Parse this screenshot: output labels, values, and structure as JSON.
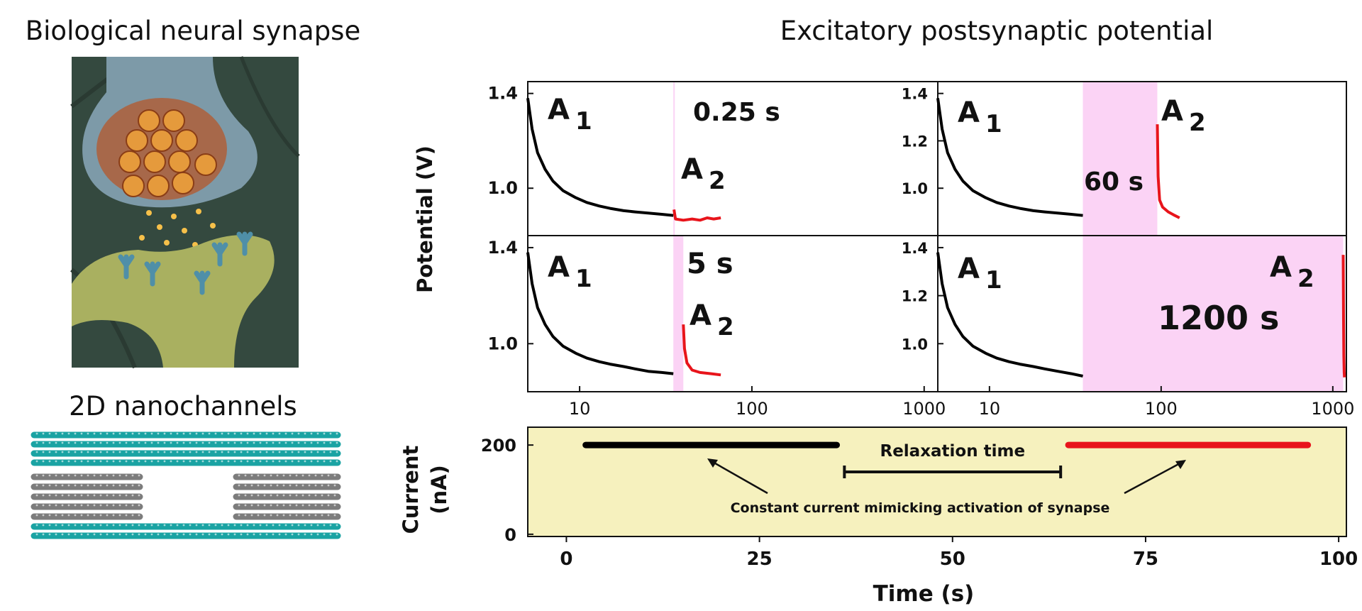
{
  "left_panel": {
    "title_top": "Biological neural synapse",
    "title_bottom": "2D nanochannels"
  },
  "figure_title": "Excitatory postsynaptic potential",
  "colors": {
    "first_pulse": "#000000",
    "second_pulse": "#e8141b",
    "interval_shade": "#fbd3f5",
    "current_bg": "#f6f1be",
    "channel_layer": "#1aa3a3",
    "channel_inner": "#808080"
  },
  "chart_data": [
    {
      "type": "line",
      "panel": "top-left",
      "xscale": "log",
      "xlim": [
        5,
        1200
      ],
      "x_ticks": [
        "10",
        "100",
        "1000"
      ],
      "ylim": [
        0.8,
        1.45
      ],
      "y_ticks": [
        "1.0",
        "1.4"
      ],
      "ylabel": "Potential (V)",
      "interval_label": "0.25 s",
      "shade_x": [
        35,
        35.4
      ],
      "series": [
        {
          "name": "A 1",
          "points": [
            [
              5,
              1.38
            ],
            [
              5.3,
              1.25
            ],
            [
              5.7,
              1.15
            ],
            [
              6.3,
              1.08
            ],
            [
              7,
              1.03
            ],
            [
              8,
              0.99
            ],
            [
              9.5,
              0.96
            ],
            [
              11,
              0.94
            ],
            [
              13,
              0.925
            ],
            [
              15,
              0.915
            ],
            [
              18,
              0.905
            ],
            [
              21,
              0.9
            ],
            [
              25,
              0.895
            ],
            [
              30,
              0.89
            ],
            [
              35,
              0.885
            ]
          ]
        },
        {
          "name": "A 2",
          "points": [
            [
              35.3,
              0.91
            ],
            [
              36,
              0.87
            ],
            [
              40,
              0.865
            ],
            [
              45,
              0.87
            ],
            [
              50,
              0.865
            ],
            [
              55,
              0.875
            ],
            [
              60,
              0.87
            ],
            [
              66,
              0.875
            ]
          ]
        }
      ]
    },
    {
      "type": "line",
      "panel": "top-right",
      "xscale": "log",
      "xlim": [
        5,
        1200
      ],
      "x_ticks": [
        "10",
        "100",
        "1000"
      ],
      "ylim": [
        0.8,
        1.45
      ],
      "y_ticks": [
        "1.0",
        "1.2",
        "1.4"
      ],
      "interval_label": "60 s",
      "shade_x": [
        35,
        95
      ],
      "series": [
        {
          "name": "A 1",
          "points": [
            [
              5,
              1.38
            ],
            [
              5.3,
              1.25
            ],
            [
              5.7,
              1.15
            ],
            [
              6.3,
              1.08
            ],
            [
              7,
              1.03
            ],
            [
              8,
              0.99
            ],
            [
              9.5,
              0.96
            ],
            [
              11,
              0.94
            ],
            [
              13,
              0.925
            ],
            [
              15,
              0.915
            ],
            [
              18,
              0.905
            ],
            [
              21,
              0.9
            ],
            [
              25,
              0.895
            ],
            [
              30,
              0.89
            ],
            [
              35,
              0.885
            ]
          ]
        },
        {
          "name": "A 2",
          "points": [
            [
              95,
              1.27
            ],
            [
              96,
              1.05
            ],
            [
              98,
              0.95
            ],
            [
              102,
              0.92
            ],
            [
              110,
              0.9
            ],
            [
              120,
              0.885
            ],
            [
              128,
              0.875
            ]
          ]
        }
      ]
    },
    {
      "type": "line",
      "panel": "bottom-left",
      "xscale": "log",
      "xlim": [
        5,
        1200
      ],
      "x_ticks": [
        "10",
        "100",
        "1000"
      ],
      "ylim": [
        0.8,
        1.45
      ],
      "y_ticks": [
        "1.0",
        "1.4"
      ],
      "interval_label": "5 s",
      "shade_x": [
        35,
        40
      ],
      "series": [
        {
          "name": "A 1",
          "points": [
            [
              5,
              1.38
            ],
            [
              5.3,
              1.25
            ],
            [
              5.7,
              1.15
            ],
            [
              6.3,
              1.08
            ],
            [
              7,
              1.03
            ],
            [
              8,
              0.99
            ],
            [
              9.5,
              0.96
            ],
            [
              11,
              0.94
            ],
            [
              13,
              0.925
            ],
            [
              15,
              0.915
            ],
            [
              18,
              0.905
            ],
            [
              21,
              0.895
            ],
            [
              25,
              0.885
            ],
            [
              30,
              0.88
            ],
            [
              35,
              0.875
            ]
          ]
        },
        {
          "name": "A 2",
          "points": [
            [
              40,
              1.08
            ],
            [
              40.6,
              0.98
            ],
            [
              42,
              0.92
            ],
            [
              45,
              0.89
            ],
            [
              50,
              0.88
            ],
            [
              58,
              0.875
            ],
            [
              66,
              0.87
            ]
          ]
        }
      ]
    },
    {
      "type": "line",
      "panel": "bottom-right",
      "xscale": "log",
      "xlim": [
        5,
        1200
      ],
      "x_ticks": [
        "10",
        "100",
        "1000"
      ],
      "ylim": [
        0.8,
        1.45
      ],
      "y_ticks": [
        "1.0",
        "1.2",
        "1.4"
      ],
      "interval_label": "1200 s",
      "shade_x": [
        35,
        1150
      ],
      "series": [
        {
          "name": "A 1",
          "points": [
            [
              5,
              1.38
            ],
            [
              5.3,
              1.25
            ],
            [
              5.7,
              1.15
            ],
            [
              6.3,
              1.08
            ],
            [
              7,
              1.03
            ],
            [
              8,
              0.99
            ],
            [
              9.5,
              0.96
            ],
            [
              11,
              0.94
            ],
            [
              13,
              0.925
            ],
            [
              15,
              0.915
            ],
            [
              18,
              0.905
            ],
            [
              21,
              0.895
            ],
            [
              25,
              0.885
            ],
            [
              30,
              0.875
            ],
            [
              35,
              0.865
            ]
          ]
        },
        {
          "name": "A 2",
          "points": [
            [
              1150,
              1.37
            ],
            [
              1155,
              1.1
            ],
            [
              1160,
              0.95
            ],
            [
              1165,
              0.88
            ],
            [
              1170,
              0.86
            ]
          ]
        }
      ]
    },
    {
      "type": "line",
      "panel": "current",
      "xlim": [
        -5,
        101
      ],
      "x_ticks": [
        "0",
        "25",
        "50",
        "75",
        "100"
      ],
      "ylim": [
        -5,
        240
      ],
      "y_ticks": [
        "0",
        "200"
      ],
      "xlabel": "Time (s)",
      "ylabel": "Current (nA)",
      "annotation_relaxation": "Relaxation time",
      "annotation_constant": "Constant current mimicking activation of synapse",
      "series": [
        {
          "name": "A 1",
          "points": [
            [
              2.5,
              200
            ],
            [
              35,
              200
            ]
          ]
        },
        {
          "name": "A 2",
          "points": [
            [
              65,
              200
            ],
            [
              96,
              200
            ]
          ]
        }
      ],
      "relaxation_bracket": [
        36,
        64
      ]
    }
  ]
}
